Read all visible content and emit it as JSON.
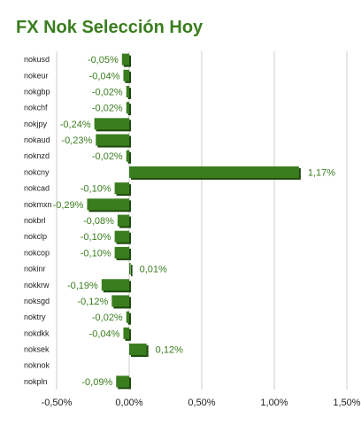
{
  "chart_data": {
    "type": "bar",
    "orientation": "horizontal",
    "title": "FX Nok Selección Hoy",
    "categories": [
      "nokusd",
      "nokeur",
      "nokgbp",
      "nokchf",
      "nokjpy",
      "nokaud",
      "noknzd",
      "nokcny",
      "nokcad",
      "nokmxn",
      "nokbrl",
      "nokclp",
      "nokcop",
      "nokinr",
      "nokkrw",
      "noksgd",
      "noktry",
      "nokdkk",
      "noksek",
      "noknok",
      "nokpln"
    ],
    "values": [
      -0.05,
      -0.04,
      -0.02,
      -0.02,
      -0.24,
      -0.23,
      -0.02,
      1.17,
      -0.1,
      -0.29,
      -0.08,
      -0.1,
      -0.1,
      0.01,
      -0.19,
      -0.12,
      -0.02,
      -0.04,
      0.12,
      null,
      -0.09
    ],
    "value_labels": [
      "-0,05%",
      "-0,04%",
      "-0,02%",
      "-0,02%",
      "-0,24%",
      "-0,23%",
      "-0,02%",
      "1,17%",
      "-0,10%",
      "-0,29%",
      "-0,08%",
      "-0,10%",
      "-0,10%",
      "0,01%",
      "-0,19%",
      "-0,12%",
      "-0,02%",
      "-0,04%",
      "0,12%",
      "",
      "-0,09%"
    ],
    "xlim": [
      -0.5,
      1.5
    ],
    "xticks": [
      -0.5,
      0,
      0.5,
      1.0,
      1.5
    ],
    "xtick_labels": [
      "-0,50%",
      "0,00%",
      "0,50%",
      "1,00%",
      "1,50%"
    ],
    "grid": true,
    "colors": {
      "bar": "#3a7d1e",
      "bar_shadow": "#1e4a0e",
      "label": "#3a7d1e",
      "grid": "#cccccc",
      "title": "#3a7d1e"
    }
  }
}
